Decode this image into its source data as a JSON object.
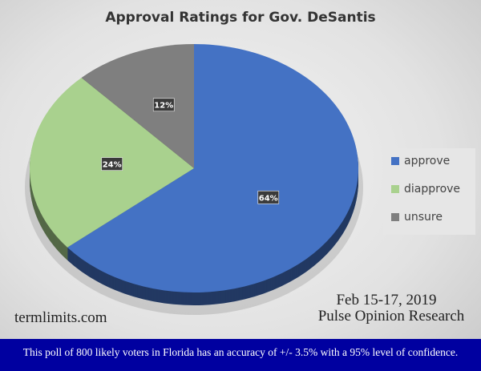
{
  "chart_data": {
    "type": "pie",
    "title": "Approval Ratings for Gov. DeSantis",
    "categories": [
      "approve",
      "diapprove",
      "unsure"
    ],
    "values": [
      64,
      24,
      12
    ],
    "labels": [
      "64%",
      "24%",
      "12%"
    ],
    "colors": [
      "#4472c4",
      "#a9d18e",
      "#7f7f7f"
    ],
    "legend_position": "right",
    "style": "3d"
  },
  "annotations": {
    "site": "termlimits.com",
    "date": "Feb 15-17, 2019",
    "source": "Pulse Opinion Research",
    "note": "This poll of 800 likely voters in Florida has an accuracy of +/- 3.5% with a 95% level of confidence."
  },
  "colors": {
    "banner": "#0000a0"
  }
}
